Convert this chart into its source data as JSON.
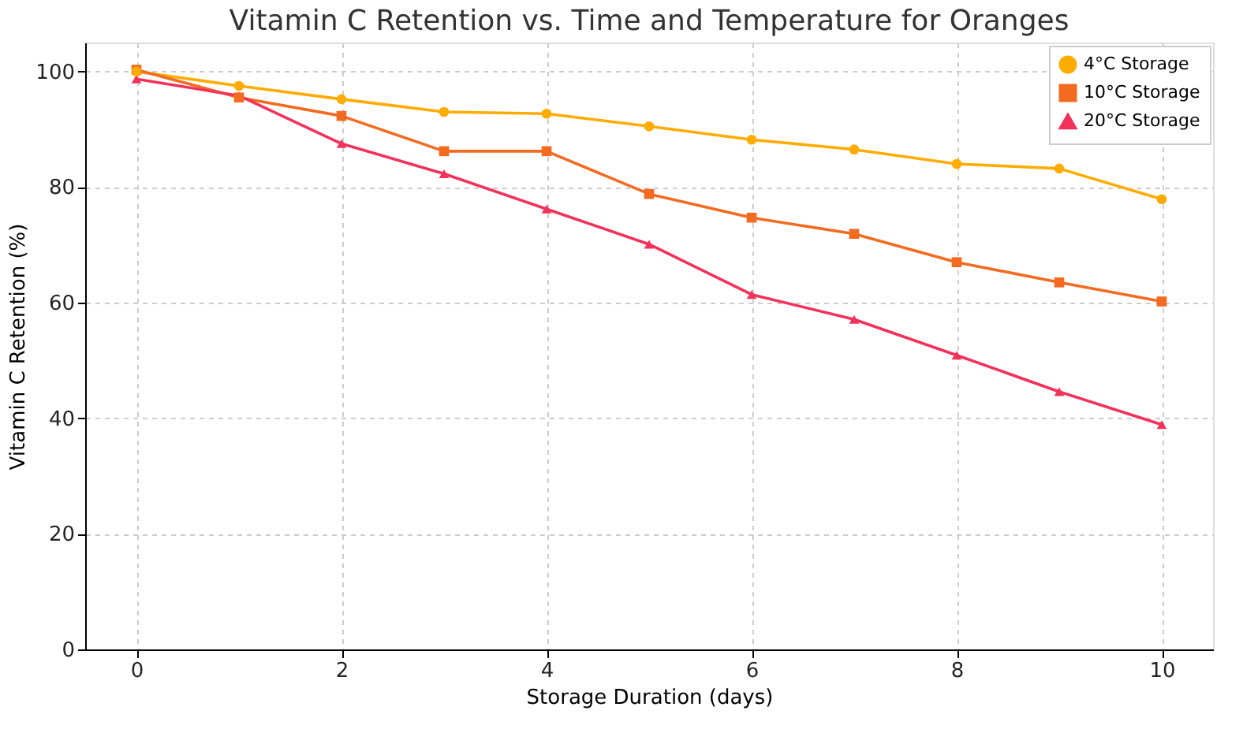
{
  "chart_data": {
    "type": "line",
    "title": "Vitamin C Retention vs. Time and Temperature for Oranges",
    "xlabel": "Storage Duration (days)",
    "ylabel": "Vitamin C Retention (%)",
    "x": [
      0,
      1,
      2,
      3,
      4,
      5,
      6,
      7,
      8,
      9,
      10
    ],
    "series": [
      {
        "name": "4°C Storage",
        "color": "#ffab00",
        "marker": "circle",
        "values": [
          100,
          97.5,
          95.2,
          93.0,
          92.7,
          90.5,
          88.2,
          86.5,
          84.0,
          83.2,
          77.9
        ]
      },
      {
        "name": "10°C Storage",
        "color": "#f26b21",
        "marker": "square",
        "values": [
          100.3,
          95.5,
          92.3,
          86.2,
          86.2,
          78.8,
          74.7,
          71.9,
          67.0,
          63.5,
          60.2
        ]
      },
      {
        "name": "20°C Storage",
        "color": "#f2325a",
        "marker": "triangle",
        "values": [
          98.7,
          95.8,
          87.5,
          82.3,
          76.2,
          70.1,
          61.4,
          57.1,
          50.9,
          44.6,
          38.9
        ]
      }
    ],
    "xlim": [
      -0.5,
      10.5
    ],
    "ylim": [
      0,
      105
    ],
    "xticks": [
      0,
      2,
      4,
      6,
      8,
      10
    ],
    "yticks": [
      0,
      20,
      40,
      60,
      80,
      100
    ],
    "grid": true,
    "legend": "top right",
    "line_style": "solid"
  }
}
